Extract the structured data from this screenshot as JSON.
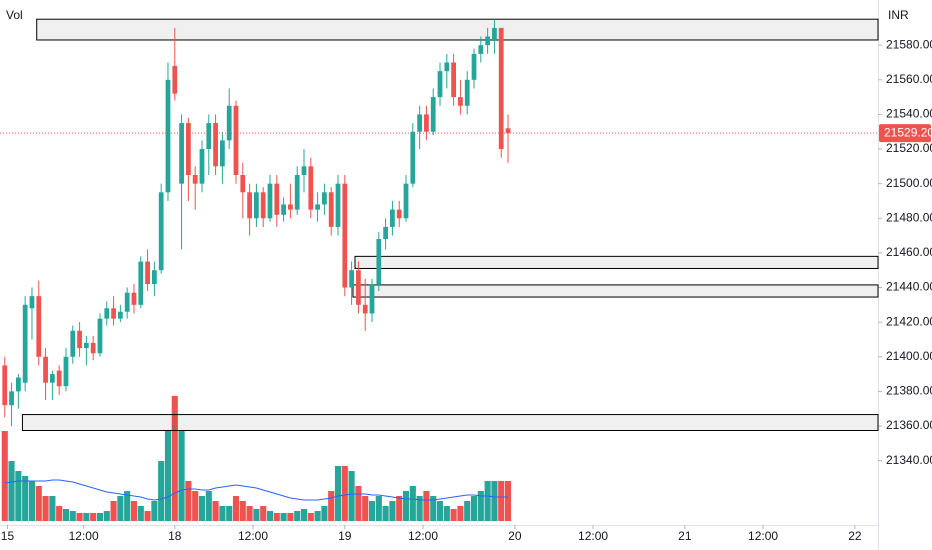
{
  "chart_data": {
    "type": "candlestick",
    "currency": "INR",
    "volume_label": "Vol",
    "up_color": "#26a69a",
    "down_color": "#ef5350",
    "ma_color": "#2962ff",
    "zone_color": "#000000",
    "open": [
      21395,
      21372,
      21380,
      21385,
      21428,
      21435,
      21400,
      21385,
      21392,
      21383,
      21400,
      21415,
      21405,
      21408,
      21402,
      21422,
      21428,
      21422,
      21426,
      21437,
      21430,
      21455,
      21442,
      21450,
      21495,
      21568,
      21500,
      21535,
      21505,
      21500,
      21520,
      21535,
      21510,
      21525,
      21545,
      21505,
      21495,
      21480,
      21495,
      21480,
      21500,
      21482,
      21488,
      21485,
      21505,
      21510,
      21485,
      21488,
      21495,
      21475,
      21500,
      21440,
      21450,
      21430,
      21425,
      21442,
      21468,
      21475,
      21485,
      21480,
      21500,
      21530,
      21540,
      21530,
      21550,
      21565,
      21570,
      21550,
      21545,
      21560,
      21575,
      21580,
      21583,
      21590,
      21532
    ],
    "high": [
      21400,
      21385,
      21390,
      21435,
      21440,
      21444,
      21405,
      21392,
      21395,
      21405,
      21418,
      21420,
      21412,
      21412,
      21425,
      21432,
      21435,
      21430,
      21440,
      21442,
      21458,
      21462,
      21455,
      21500,
      21570,
      21590,
      21540,
      21538,
      21510,
      21525,
      21540,
      21540,
      21530,
      21555,
      21548,
      21512,
      21500,
      21500,
      21498,
      21505,
      21505,
      21492,
      21500,
      21510,
      21520,
      21515,
      21495,
      21500,
      21498,
      21505,
      21505,
      21455,
      21455,
      21445,
      21445,
      21472,
      21480,
      21490,
      21490,
      21505,
      21535,
      21545,
      21545,
      21555,
      21570,
      21575,
      21575,
      21560,
      21565,
      21578,
      21585,
      21590,
      21595,
      21590,
      21540
    ],
    "low": [
      21365,
      21360,
      21370,
      21380,
      21410,
      21395,
      21375,
      21375,
      21378,
      21380,
      21396,
      21400,
      21395,
      21398,
      21400,
      21418,
      21418,
      21420,
      21422,
      21425,
      21428,
      21438,
      21435,
      21448,
      21490,
      21548,
      21462,
      21490,
      21485,
      21495,
      21505,
      21505,
      21500,
      21520,
      21500,
      21480,
      21470,
      21475,
      21475,
      21478,
      21475,
      21478,
      21480,
      21482,
      21495,
      21480,
      21478,
      21482,
      21470,
      21470,
      21435,
      21430,
      21425,
      21415,
      21420,
      21438,
      21462,
      21470,
      21475,
      21478,
      21498,
      21520,
      21525,
      21528,
      21545,
      21555,
      21545,
      21540,
      21540,
      21555,
      21570,
      21575,
      21575,
      21515,
      21512
    ],
    "close": [
      21372,
      21380,
      21388,
      21430,
      21435,
      21400,
      21385,
      21390,
      21383,
      21400,
      21415,
      21405,
      21408,
      21402,
      21422,
      21428,
      21422,
      21426,
      21437,
      21430,
      21455,
      21442,
      21450,
      21495,
      21560,
      21552,
      21535,
      21505,
      21500,
      21520,
      21535,
      21510,
      21525,
      21545,
      21505,
      21495,
      21480,
      21495,
      21480,
      21500,
      21482,
      21488,
      21485,
      21505,
      21510,
      21485,
      21488,
      21495,
      21475,
      21500,
      21440,
      21450,
      21430,
      21425,
      21442,
      21468,
      21475,
      21485,
      21480,
      21500,
      21530,
      21540,
      21530,
      21550,
      21565,
      21570,
      21550,
      21545,
      21560,
      21575,
      21580,
      21585,
      21590,
      21520,
      21529.2
    ],
    "volume": [
      90,
      60,
      50,
      45,
      40,
      35,
      25,
      25,
      15,
      12,
      10,
      8,
      8,
      8,
      8,
      10,
      20,
      25,
      30,
      20,
      15,
      10,
      20,
      60,
      90,
      125,
      90,
      40,
      30,
      25,
      30,
      20,
      15,
      15,
      25,
      20,
      15,
      12,
      15,
      10,
      8,
      8,
      8,
      10,
      12,
      8,
      10,
      15,
      30,
      55,
      55,
      50,
      35,
      25,
      20,
      25,
      15,
      20,
      25,
      30,
      35,
      25,
      30,
      25,
      20,
      15,
      12,
      15,
      20,
      25,
      30,
      40,
      40,
      40,
      40
    ],
    "volume_ma": [
      38,
      39,
      40,
      40,
      40,
      40,
      40,
      41,
      41,
      40,
      39,
      37,
      35,
      33,
      31,
      29,
      28,
      27,
      26,
      25,
      24,
      22,
      21,
      22,
      24,
      28,
      31,
      32,
      32,
      31,
      31,
      33,
      34,
      35,
      36,
      35,
      34,
      33,
      31,
      29,
      27,
      25,
      23,
      22,
      21,
      21,
      21,
      22,
      23,
      25,
      26,
      27,
      27,
      27,
      26,
      26,
      25,
      24,
      23,
      22,
      22,
      21,
      21,
      21,
      22,
      23,
      24,
      25,
      26,
      26,
      25,
      25,
      24,
      24,
      24
    ],
    "zones": [
      {
        "start": 4.7,
        "top": 21595,
        "bottom": 21583
      },
      {
        "start": 51.5,
        "top": 21458,
        "bottom": 21451
      },
      {
        "start": 51.2,
        "top": 21441.5,
        "bottom": 21434.5
      },
      {
        "start": 2.6,
        "top": 21366.6,
        "bottom": 21357.4
      }
    ],
    "last_price": {
      "value": 21529.2,
      "label": "21529.20"
    },
    "xlim": [
      -0.7,
      128.4
    ],
    "ylim": [
      21302.8,
      21606.1
    ],
    "vlim": [
      0,
      130
    ],
    "xticks": [
      {
        "value": 0.4,
        "label": "15"
      },
      {
        "value": 11.6,
        "label": "12:00"
      },
      {
        "value": 25,
        "label": "18"
      },
      {
        "value": 36.5,
        "label": "12:00"
      },
      {
        "value": 50,
        "label": "19"
      },
      {
        "value": 61.5,
        "label": "12:00"
      },
      {
        "value": 75,
        "label": "20"
      },
      {
        "value": 86.5,
        "label": "12:00"
      },
      {
        "value": 100,
        "label": "21"
      },
      {
        "value": 111.5,
        "label": "12:00"
      },
      {
        "value": 125,
        "label": "22"
      }
    ],
    "yticks": [
      {
        "value": 21340,
        "label": "21340.00"
      },
      {
        "value": 21360,
        "label": "21360.00"
      },
      {
        "value": 21380,
        "label": "21380.00"
      },
      {
        "value": 21400,
        "label": "21400.00"
      },
      {
        "value": 21420,
        "label": "21420.00"
      },
      {
        "value": 21440,
        "label": "21440.00"
      },
      {
        "value": 21460,
        "label": "21460.00"
      },
      {
        "value": 21480,
        "label": "21480.00"
      },
      {
        "value": 21500,
        "label": "21500.00"
      },
      {
        "value": 21520,
        "label": "21520.00"
      },
      {
        "value": 21540,
        "label": "21540.00"
      },
      {
        "value": 21560,
        "label": "21560.00"
      },
      {
        "value": 21580,
        "label": "21580.00"
      }
    ]
  }
}
